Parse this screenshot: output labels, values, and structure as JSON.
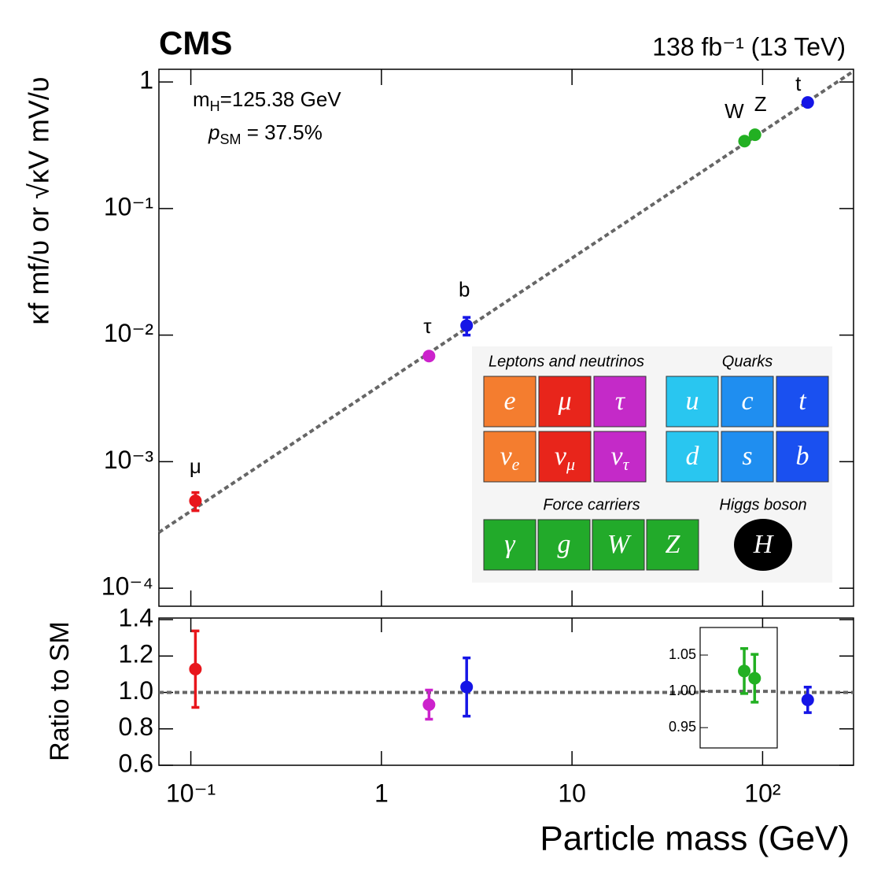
{
  "chart_data": [
    {
      "type": "scatter",
      "title": "CMS",
      "subtitle": "138 fb⁻¹ (13 TeV)",
      "ylabel": "κf mf/υ  or  √κV mV/υ",
      "annotations": [
        {
          "text": "m",
          "sub": "H",
          "rest": "=125.38 GeV"
        },
        {
          "text": "p",
          "sub": "SM",
          "rest": " = 37.5%"
        }
      ],
      "logx": true,
      "logy": true,
      "xlim": [
        0.068,
        300
      ],
      "ylim": [
        7.2e-05,
        1.26
      ],
      "yticks": [
        {
          "value": 0.0001,
          "label": "10⁻⁴"
        },
        {
          "value": 0.001,
          "label": "10⁻³"
        },
        {
          "value": 0.01,
          "label": "10⁻²"
        },
        {
          "value": 0.1,
          "label": "10⁻¹"
        },
        1
      ],
      "reference_line": {
        "x": [
          0.068,
          300
        ],
        "values": [
          0.000276,
          1.218
        ],
        "color": "#666666"
      },
      "series": [
        {
          "name": "μ",
          "color": "#e8161c",
          "x": [
            0.1057
          ],
          "values": [
            0.00049
          ],
          "errors": [
            8e-05
          ]
        },
        {
          "name": "τ",
          "color": "#cc22cc",
          "x": [
            1.777
          ],
          "values": [
            0.00683
          ],
          "errors": [
            null
          ]
        },
        {
          "name": "b",
          "color": "#1515e6",
          "x": [
            2.8
          ],
          "values": [
            0.0119
          ],
          "errors": [
            0.0019
          ]
        },
        {
          "name": "W",
          "color": "#22b022",
          "x": [
            80.4
          ],
          "values": [
            0.341
          ],
          "errors": [
            null
          ]
        },
        {
          "name": "Z",
          "color": "#22b022",
          "x": [
            91.2
          ],
          "values": [
            0.383
          ],
          "errors": [
            null
          ]
        },
        {
          "name": "t",
          "color": "#1515e6",
          "x": [
            172.5
          ],
          "values": [
            0.689
          ],
          "errors": [
            null
          ]
        }
      ]
    },
    {
      "type": "scatter",
      "ylabel": "Ratio to SM",
      "xlabel": "Particle mass (GeV)",
      "logx": true,
      "xlim": [
        0.068,
        300
      ],
      "xticks": [
        {
          "value": 0.1,
          "label": "10⁻¹"
        },
        1,
        10,
        {
          "value": 100,
          "label": "10²"
        }
      ],
      "ylim": [
        0.6,
        1.4
      ],
      "yticks": [
        0.6,
        0.8,
        {
          "value": 1,
          "label": "1.0"
        },
        1.2,
        1.4
      ],
      "reference_value": 1,
      "series": [
        {
          "color": "#e8161c",
          "x": [
            0.1057
          ],
          "values": [
            1.128
          ],
          "errors": [
            0.21
          ]
        },
        {
          "color": "#cc22cc",
          "x": [
            1.777
          ],
          "values": [
            0.933
          ],
          "errors": [
            0.08
          ]
        },
        {
          "color": "#1515e6",
          "x": [
            2.8
          ],
          "values": [
            1.03
          ],
          "errors": [
            0.16
          ]
        },
        {
          "color": "#1515e6",
          "x": [
            172.5
          ],
          "values": [
            0.959
          ],
          "errors": [
            0.07
          ]
        }
      ]
    },
    {
      "type": "scatter",
      "logx": true,
      "xlim": [
        47.2,
        119.8
      ],
      "ylim": [
        0.922,
        1.088
      ],
      "yticks": [
        0.95,
        {
          "value": 1,
          "label": "1.00"
        },
        1.05
      ],
      "reference_value": 1,
      "series": [
        {
          "color": "#22b022",
          "x": [
            80.4
          ],
          "values": [
            1.028
          ],
          "errors": [
            0.031
          ]
        },
        {
          "color": "#22b022",
          "x": [
            91.2
          ],
          "values": [
            1.018
          ],
          "errors": [
            0.033
          ]
        }
      ]
    }
  ],
  "particle_table": {
    "groups": [
      {
        "title": "Leptons and neutrinos",
        "cells": [
          {
            "symbol": "e",
            "color": "#f47d2f"
          },
          {
            "symbol": "μ",
            "color": "#e8251b"
          },
          {
            "symbol": "τ",
            "color": "#c42ac8"
          },
          {
            "symbol": "ν",
            "sub": "e",
            "color": "#f47d2f"
          },
          {
            "symbol": "ν",
            "sub": "μ",
            "color": "#e8251b"
          },
          {
            "symbol": "ν",
            "sub": "τ",
            "color": "#c42ac8"
          }
        ]
      },
      {
        "title": "Quarks",
        "cells": [
          {
            "symbol": "u",
            "color": "#29c6f0"
          },
          {
            "symbol": "c",
            "color": "#1f8ef0"
          },
          {
            "symbol": "t",
            "color": "#1a50f0"
          },
          {
            "symbol": "d",
            "color": "#29c6f0"
          },
          {
            "symbol": "s",
            "color": "#1f8ef0"
          },
          {
            "symbol": "b",
            "color": "#1a50f0"
          }
        ]
      },
      {
        "title": "Force carriers",
        "cells": [
          {
            "symbol": "γ",
            "color": "#22aa2a"
          },
          {
            "symbol": "g",
            "color": "#22aa2a"
          },
          {
            "symbol": "W",
            "color": "#22aa2a"
          },
          {
            "symbol": "Z",
            "color": "#22aa2a"
          }
        ]
      },
      {
        "title": "Higgs boson",
        "cells": [
          {
            "symbol": "H",
            "color": "#000000"
          }
        ]
      }
    ]
  }
}
